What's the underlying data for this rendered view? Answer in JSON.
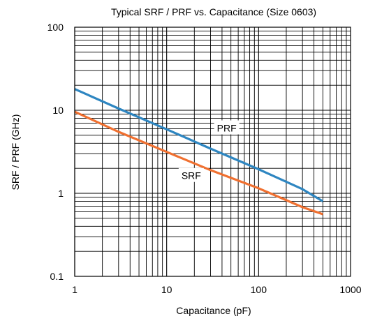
{
  "chart_data": {
    "type": "line",
    "title": "Typical SRF / PRF vs. Capacitance (Size 0603)",
    "xlabel": "Capacitance (pF)",
    "ylabel": "SRF / PRF (GHz)",
    "x_scale": "log",
    "y_scale": "log",
    "xlim": [
      1,
      1000
    ],
    "ylim": [
      0.1,
      100
    ],
    "x_ticks": [
      "1",
      "10",
      "100",
      "1000"
    ],
    "y_ticks": [
      "0.1",
      "1",
      "10",
      "100"
    ],
    "grid": true,
    "series": [
      {
        "name": "PRF",
        "color": "#2e86c1",
        "x": [
          1,
          3,
          10,
          30,
          100,
          300,
          500
        ],
        "y": [
          18.0,
          10.5,
          5.9,
          3.45,
          1.95,
          1.12,
          0.8
        ]
      },
      {
        "name": "SRF",
        "color": "#f07030",
        "x": [
          1,
          3,
          10,
          30,
          100,
          300,
          500
        ],
        "y": [
          9.6,
          5.5,
          3.15,
          1.9,
          1.15,
          0.68,
          0.56
        ]
      }
    ]
  }
}
